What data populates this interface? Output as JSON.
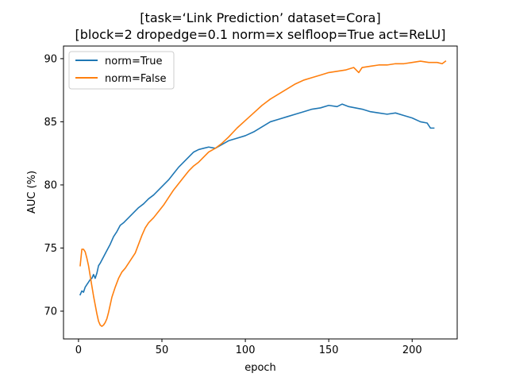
{
  "chart_data": {
    "type": "line",
    "title_lines": [
      "[task=‘Link Prediction’ dataset=Cora]",
      "[block=2 dropedge=0.1 norm=x selfloop=True act=ReLU]"
    ],
    "xlabel": "epoch",
    "ylabel": "AUC (%)",
    "xlim": [
      -9,
      227
    ],
    "ylim": [
      67.8,
      91.0
    ],
    "xticks": [
      0,
      50,
      100,
      150,
      200
    ],
    "yticks": [
      70,
      75,
      80,
      85,
      90
    ],
    "grid": false,
    "legend_position": "top-left",
    "series": [
      {
        "name": "norm=True",
        "color": "#1f77b4",
        "points": [
          [
            1,
            71.3
          ],
          [
            2,
            71.6
          ],
          [
            3,
            71.5
          ],
          [
            4,
            71.9
          ],
          [
            5,
            72.1
          ],
          [
            6,
            72.3
          ],
          [
            7,
            72.5
          ],
          [
            8,
            72.6
          ],
          [
            9,
            72.9
          ],
          [
            10,
            72.6
          ],
          [
            11,
            73.0
          ],
          [
            12,
            73.6
          ],
          [
            13,
            73.8
          ],
          [
            15,
            74.3
          ],
          [
            17,
            74.8
          ],
          [
            19,
            75.3
          ],
          [
            21,
            75.9
          ],
          [
            23,
            76.3
          ],
          [
            25,
            76.8
          ],
          [
            27,
            77.0
          ],
          [
            30,
            77.4
          ],
          [
            33,
            77.8
          ],
          [
            36,
            78.2
          ],
          [
            39,
            78.5
          ],
          [
            42,
            78.9
          ],
          [
            45,
            79.2
          ],
          [
            48,
            79.6
          ],
          [
            51,
            80.0
          ],
          [
            54,
            80.4
          ],
          [
            57,
            80.9
          ],
          [
            60,
            81.4
          ],
          [
            63,
            81.8
          ],
          [
            66,
            82.2
          ],
          [
            69,
            82.6
          ],
          [
            72,
            82.8
          ],
          [
            75,
            82.9
          ],
          [
            78,
            83.0
          ],
          [
            82,
            82.9
          ],
          [
            86,
            83.2
          ],
          [
            90,
            83.5
          ],
          [
            95,
            83.7
          ],
          [
            100,
            83.9
          ],
          [
            105,
            84.2
          ],
          [
            110,
            84.6
          ],
          [
            115,
            85.0
          ],
          [
            120,
            85.2
          ],
          [
            125,
            85.4
          ],
          [
            130,
            85.6
          ],
          [
            135,
            85.8
          ],
          [
            140,
            86.0
          ],
          [
            145,
            86.1
          ],
          [
            150,
            86.3
          ],
          [
            155,
            86.2
          ],
          [
            158,
            86.4
          ],
          [
            162,
            86.2
          ],
          [
            166,
            86.1
          ],
          [
            170,
            86.0
          ],
          [
            175,
            85.8
          ],
          [
            180,
            85.7
          ],
          [
            185,
            85.6
          ],
          [
            190,
            85.7
          ],
          [
            195,
            85.5
          ],
          [
            200,
            85.3
          ],
          [
            205,
            85.0
          ],
          [
            209,
            84.9
          ],
          [
            211,
            84.5
          ],
          [
            213,
            84.5
          ]
        ]
      },
      {
        "name": "norm=False",
        "color": "#ff7f0e",
        "points": [
          [
            1,
            73.6
          ],
          [
            2,
            74.9
          ],
          [
            3,
            74.9
          ],
          [
            4,
            74.7
          ],
          [
            5,
            74.2
          ],
          [
            6,
            73.6
          ],
          [
            7,
            72.8
          ],
          [
            8,
            72.0
          ],
          [
            9,
            71.2
          ],
          [
            10,
            70.5
          ],
          [
            11,
            69.8
          ],
          [
            12,
            69.2
          ],
          [
            13,
            68.9
          ],
          [
            14,
            68.8
          ],
          [
            15,
            68.9
          ],
          [
            16,
            69.1
          ],
          [
            17,
            69.4
          ],
          [
            18,
            69.9
          ],
          [
            19,
            70.5
          ],
          [
            20,
            71.1
          ],
          [
            22,
            71.9
          ],
          [
            24,
            72.6
          ],
          [
            26,
            73.1
          ],
          [
            28,
            73.4
          ],
          [
            30,
            73.8
          ],
          [
            32,
            74.2
          ],
          [
            34,
            74.6
          ],
          [
            36,
            75.3
          ],
          [
            38,
            76.0
          ],
          [
            40,
            76.6
          ],
          [
            42,
            77.0
          ],
          [
            45,
            77.4
          ],
          [
            48,
            77.9
          ],
          [
            51,
            78.4
          ],
          [
            54,
            79.0
          ],
          [
            57,
            79.6
          ],
          [
            60,
            80.1
          ],
          [
            63,
            80.6
          ],
          [
            66,
            81.1
          ],
          [
            69,
            81.5
          ],
          [
            72,
            81.8
          ],
          [
            75,
            82.2
          ],
          [
            78,
            82.6
          ],
          [
            82,
            82.9
          ],
          [
            86,
            83.3
          ],
          [
            90,
            83.8
          ],
          [
            95,
            84.5
          ],
          [
            100,
            85.1
          ],
          [
            105,
            85.7
          ],
          [
            110,
            86.3
          ],
          [
            115,
            86.8
          ],
          [
            120,
            87.2
          ],
          [
            125,
            87.6
          ],
          [
            130,
            88.0
          ],
          [
            135,
            88.3
          ],
          [
            140,
            88.5
          ],
          [
            145,
            88.7
          ],
          [
            150,
            88.9
          ],
          [
            155,
            89.0
          ],
          [
            160,
            89.1
          ],
          [
            165,
            89.3
          ],
          [
            168,
            88.9
          ],
          [
            170,
            89.3
          ],
          [
            175,
            89.4
          ],
          [
            180,
            89.5
          ],
          [
            185,
            89.5
          ],
          [
            190,
            89.6
          ],
          [
            195,
            89.6
          ],
          [
            200,
            89.7
          ],
          [
            205,
            89.8
          ],
          [
            210,
            89.7
          ],
          [
            215,
            89.7
          ],
          [
            218,
            89.6
          ],
          [
            220,
            89.8
          ]
        ]
      }
    ]
  }
}
